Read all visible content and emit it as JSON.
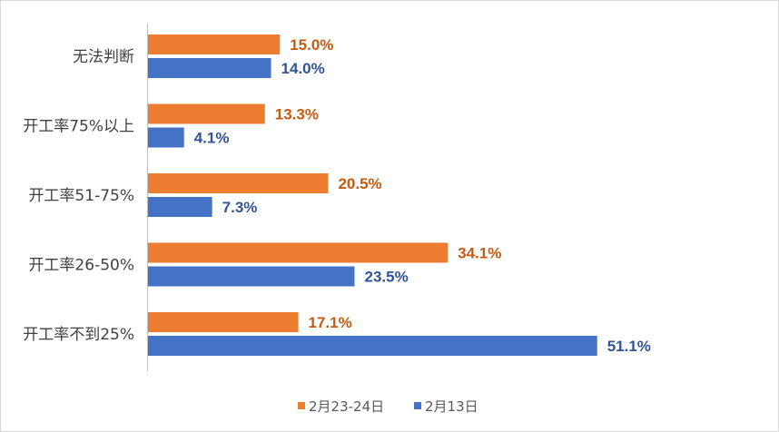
{
  "chart_data": {
    "type": "bar",
    "orientation": "horizontal",
    "title": "",
    "xlabel": "",
    "ylabel": "",
    "xlim": [
      0,
      60
    ],
    "grid": false,
    "legend_position": "bottom",
    "categories": [
      "无法判断",
      "开工率75%以上",
      "开工率51-75%",
      "开工率26-50%",
      "开工率不到25%"
    ],
    "series": [
      {
        "name": "2月23-24日",
        "color": "#ed7d31",
        "label_color": "#c55a11",
        "values": [
          15.0,
          13.3,
          20.5,
          34.1,
          17.1
        ],
        "labels": [
          "15.0%",
          "13.3%",
          "20.5%",
          "34.1%",
          "17.1%"
        ]
      },
      {
        "name": "2月13日",
        "color": "#4472c4",
        "label_color": "#2f5597",
        "values": [
          14.0,
          4.1,
          7.3,
          23.5,
          51.1
        ],
        "labels": [
          "14.0%",
          "4.1%",
          "7.3%",
          "23.5%",
          "51.1%"
        ]
      }
    ]
  }
}
